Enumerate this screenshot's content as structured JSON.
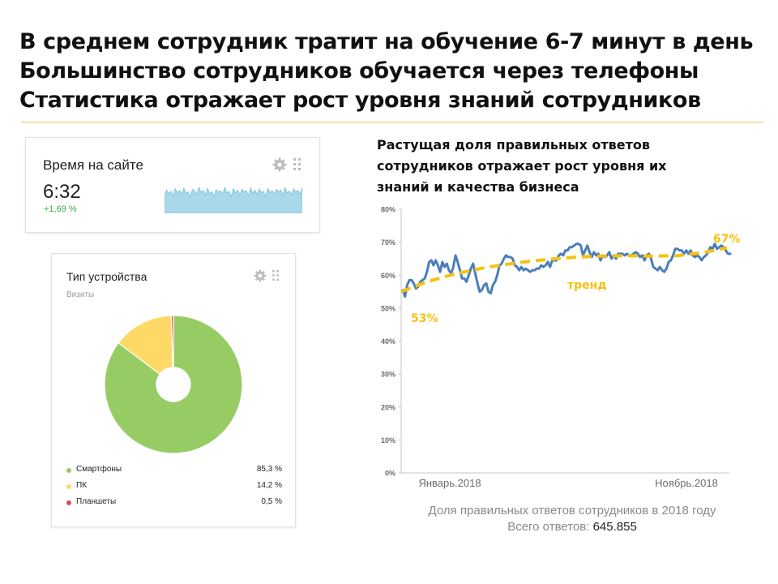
{
  "headline": {
    "line1": "В среднем сотрудник тратит на обучение 6-7 минут в день",
    "line2": "Большинство сотрудников обучается через телефоны",
    "line3": "Статистика отражает рост уровня знаний сотрудников"
  },
  "time_widget": {
    "title": "Время на сайте",
    "value": "6:32",
    "delta": "+1,69 %",
    "icons": [
      "gear-icon",
      "drag-handle-icon"
    ],
    "sparkline_color": "#a8d8ea"
  },
  "device_widget": {
    "title": "Тип устройства",
    "subtitle": "Визиты",
    "icons": [
      "gear-icon",
      "drag-handle-icon"
    ]
  },
  "right_chart": {
    "title_line1": "Растущая доля правильных ответов",
    "title_line2": "сотрудников отражает рост уровня их",
    "title_line3": "знаний и качества бизнеса"
  },
  "caption": {
    "line1": "Доля правильных ответов сотрудников в 2018 году",
    "total_label": "Всего ответов:",
    "total_value": "645.855"
  },
  "colors": {
    "smartphones": "#97cc64",
    "pc": "#ffd966",
    "tablets": "#e04b4b",
    "series": "#4a7ebb",
    "trend": "#f5c211",
    "rule": "#e8c24a"
  },
  "chart_data": [
    {
      "type": "pie",
      "title": "Тип устройства",
      "subtitle": "Визиты",
      "labels": [
        "Смартфоны",
        "ПК",
        "Планшеты"
      ],
      "values": [
        85.3,
        14.2,
        0.5
      ],
      "value_labels": [
        "85,3 %",
        "14,2 %",
        "0,5 %"
      ],
      "colors": [
        "#97cc64",
        "#ffd966",
        "#e04b4b"
      ],
      "donut": true,
      "legend": "bottom"
    },
    {
      "type": "line",
      "title": "",
      "x_labels": [
        "Январь.2018",
        "Ноябрь.2018"
      ],
      "y_ticks": [
        "0%",
        "10%",
        "20%",
        "30%",
        "40%",
        "50%",
        "60%",
        "70%",
        "80%"
      ],
      "ylim": [
        0,
        80
      ],
      "grid": false,
      "series": [
        {
          "values": [
            55.5,
            53.5,
            57,
            58.5,
            58.5,
            57.5,
            56,
            56.5,
            58,
            58.5,
            59,
            61,
            64,
            64.5,
            63,
            64.5,
            63,
            61,
            64,
            62.5,
            63.5,
            61.5,
            60.5,
            62.5,
            66,
            64,
            61.5,
            59,
            59,
            58,
            60,
            62,
            63.5,
            60.5,
            57.5,
            55,
            55.5,
            57,
            57.5,
            55,
            54.5,
            57,
            58,
            60,
            63,
            63.5,
            65,
            66,
            65.5,
            65.5,
            65,
            63,
            62.5,
            61.5,
            62.5,
            61.5,
            62,
            61.5,
            61,
            61.5,
            61.5,
            62,
            62,
            63,
            62.5,
            63,
            64,
            62.5,
            64.5,
            64.5,
            64.5,
            66,
            66.5,
            66,
            67.5,
            67.5,
            68.5,
            68.5,
            69,
            69.5,
            69.5,
            69,
            66,
            67.5,
            69,
            67,
            65.5,
            67,
            66,
            66.5,
            64.5,
            66,
            65.5,
            66,
            67,
            65,
            66,
            65,
            66.5,
            66.5,
            66.5,
            66,
            66.5,
            66,
            66,
            66.5,
            67,
            66.5,
            65.5,
            66,
            64.5,
            66,
            66.5,
            65,
            62.5,
            62,
            61.5,
            62.5,
            61.5,
            61,
            62,
            64,
            64.5,
            66,
            68,
            68,
            67.5,
            67.5,
            66.5,
            67.5,
            66.5,
            67.5,
            66,
            65.5,
            66,
            65.5,
            64.5,
            65.5,
            66,
            67,
            68.5,
            68,
            69.5,
            68,
            68.5,
            69,
            68.5,
            67.5,
            66.5,
            66.5
          ],
          "color": "#4a7ebb"
        },
        {
          "name": "тренд",
          "values": [
            55,
            57.9,
            60.1,
            61.8,
            63.1,
            64.1,
            64.9,
            65.5,
            65.8,
            65.9,
            65.8,
            65.9,
            66.8,
            68.3
          ],
          "color": "#f5c211",
          "dashed": true
        }
      ],
      "annotations": [
        "53%",
        "67%",
        "тренд"
      ]
    },
    {
      "type": "area",
      "title": "",
      "values": [
        0.55,
        0.72,
        0.6,
        0.68,
        0.52,
        0.75,
        0.63,
        0.7,
        0.58,
        0.78,
        0.62,
        0.66,
        0.5,
        0.74,
        0.69,
        0.57,
        0.8,
        0.64,
        0.71,
        0.55,
        0.77,
        0.6,
        0.67,
        0.53,
        0.73,
        0.65,
        0.7,
        0.58,
        0.79,
        0.62,
        0.68,
        0.51,
        0.76,
        0.63,
        0.71,
        0.56,
        0.74,
        0.66,
        0.69,
        0.54,
        0.78,
        0.61,
        0.72,
        0.57,
        0.75,
        0.64,
        0.68,
        0.52,
        0.77,
        0.63,
        0.7,
        0.59,
        0.74,
        0.66,
        0.72,
        0.55,
        0.79,
        0.62,
        0.69,
        0.56,
        0.76,
        0.65,
        0.71,
        0.58,
        0.81
      ],
      "color": "#a8d8ea"
    }
  ]
}
